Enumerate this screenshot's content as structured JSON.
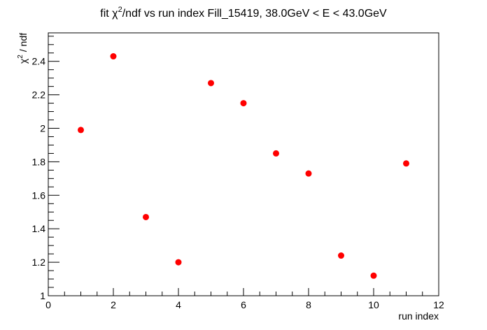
{
  "chart_data": {
    "type": "scatter",
    "title_parts": {
      "prefix": "fit ",
      "chi": "χ",
      "sup": "2",
      "suffix": "/ndf vs run index Fill_15419, 38.0GeV < E < 43.0GeV"
    },
    "xlabel": "run index",
    "ylabel_parts": {
      "chi": "χ",
      "sup": "2",
      "suffix": " / ndf"
    },
    "xlim": [
      0,
      12
    ],
    "ylim": [
      1.0,
      2.57
    ],
    "x_ticks": [
      0,
      2,
      4,
      6,
      8,
      10,
      12
    ],
    "y_ticks": [
      1,
      1.2,
      1.4,
      1.6,
      1.8,
      2,
      2.2,
      2.4
    ],
    "y_tick_labels": [
      "1",
      "1.2",
      "1.4",
      "1.6",
      "1.8",
      "2",
      "2.2",
      "2.4"
    ],
    "x_tick_labels": [
      "0",
      "2",
      "4",
      "6",
      "8",
      "10",
      "12"
    ],
    "grid": false,
    "legend": "none",
    "marker_color": "#ff0000",
    "series": [
      {
        "x": [
          1,
          2,
          3,
          4,
          5,
          6,
          7,
          8,
          9,
          10,
          11
        ],
        "y": [
          1.99,
          2.43,
          1.47,
          1.2,
          2.27,
          2.15,
          1.85,
          1.73,
          1.24,
          1.12,
          1.79
        ]
      }
    ]
  }
}
